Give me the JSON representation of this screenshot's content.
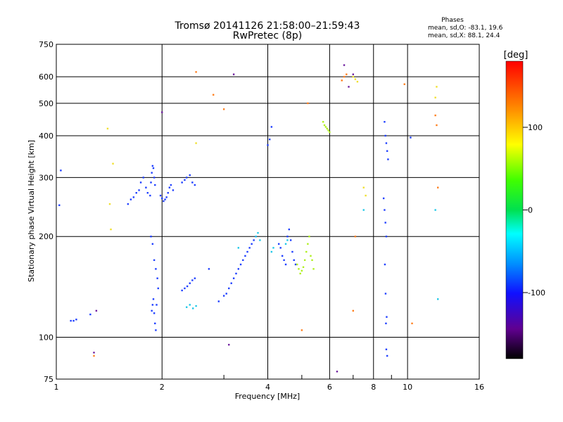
{
  "chart_data": {
    "type": "scatter",
    "title": "Tromsø 20141126 21:58:00–21:59:43",
    "subtitle": "RwPretec (8p)",
    "phases_panel": {
      "heading": "Phases",
      "line_o": "mean, sd,O: -83.1, 19.6",
      "line_x": "mean, sd,X:  88.1, 24.4"
    },
    "xlabel": "Frequency [MHz]",
    "ylabel": "Stationary phase Virtual Height [km]",
    "x_scale": "log",
    "y_scale": "log",
    "xlim": [
      1,
      16
    ],
    "ylim": [
      75,
      750
    ],
    "x_ticks": [
      1,
      2,
      4,
      6,
      8,
      10,
      16
    ],
    "x_tick_labels": [
      "1",
      "2",
      "4",
      "6",
      "8",
      "10",
      "16"
    ],
    "y_ticks": [
      75,
      100,
      200,
      300,
      400,
      500,
      600,
      750
    ],
    "y_tick_labels": [
      "75",
      "100",
      "200",
      "300",
      "400",
      "500",
      "600",
      "750"
    ],
    "grid": true,
    "colorbar": {
      "label": "[deg]",
      "range": [
        -180,
        180
      ],
      "ticks": [
        100,
        0,
        -100
      ],
      "tick_labels": [
        "100",
        "0",
        "-100"
      ]
    },
    "series": [
      {
        "points": [
          [
            1.1,
            112
          ],
          [
            1.12,
            112
          ],
          [
            1.14,
            113
          ],
          [
            1.25,
            117
          ],
          [
            1.02,
            248
          ],
          [
            1.03,
            315
          ],
          [
            1.6,
            250
          ],
          [
            1.63,
            258
          ],
          [
            1.66,
            262
          ],
          [
            1.69,
            270
          ],
          [
            1.72,
            275
          ],
          [
            1.74,
            290
          ],
          [
            1.77,
            300
          ],
          [
            1.8,
            280
          ],
          [
            1.82,
            270
          ],
          [
            1.85,
            265
          ],
          [
            1.86,
            290
          ],
          [
            1.87,
            310
          ],
          [
            1.88,
            325
          ],
          [
            1.89,
            320
          ],
          [
            1.9,
            300
          ],
          [
            1.91,
            285
          ],
          [
            1.87,
            120
          ],
          [
            1.88,
            125
          ],
          [
            1.89,
            130
          ],
          [
            1.9,
            118
          ],
          [
            1.91,
            110
          ],
          [
            1.92,
            105
          ],
          [
            1.93,
            125
          ],
          [
            1.95,
            140
          ],
          [
            1.86,
            200
          ],
          [
            1.88,
            190
          ],
          [
            1.9,
            170
          ],
          [
            1.92,
            160
          ],
          [
            1.94,
            150
          ],
          [
            1.98,
            265
          ],
          [
            2.0,
            260
          ],
          [
            2.02,
            255
          ],
          [
            2.04,
            258
          ],
          [
            2.06,
            262
          ],
          [
            2.08,
            270
          ],
          [
            2.1,
            280
          ],
          [
            2.12,
            285
          ],
          [
            2.15,
            275
          ],
          [
            2.28,
            290
          ],
          [
            2.32,
            295
          ],
          [
            2.35,
            300
          ],
          [
            2.4,
            305
          ],
          [
            2.44,
            290
          ],
          [
            2.48,
            285
          ],
          [
            2.28,
            138
          ],
          [
            2.32,
            140
          ],
          [
            2.36,
            142
          ],
          [
            2.4,
            145
          ],
          [
            2.44,
            148
          ],
          [
            2.48,
            150
          ],
          [
            2.72,
            160
          ],
          [
            2.9,
            128
          ],
          [
            3.0,
            133
          ],
          [
            3.05,
            135
          ],
          [
            3.1,
            140
          ],
          [
            3.15,
            145
          ],
          [
            3.2,
            150
          ],
          [
            3.25,
            155
          ],
          [
            3.3,
            160
          ],
          [
            3.35,
            165
          ],
          [
            3.4,
            170
          ],
          [
            3.45,
            175
          ],
          [
            3.5,
            180
          ],
          [
            3.55,
            185
          ],
          [
            3.6,
            190
          ],
          [
            3.65,
            195
          ],
          [
            3.7,
            200
          ],
          [
            4.1,
            425
          ],
          [
            4.05,
            390
          ],
          [
            4.0,
            375
          ],
          [
            4.3,
            190
          ],
          [
            4.35,
            185
          ],
          [
            4.4,
            175
          ],
          [
            4.45,
            170
          ],
          [
            4.5,
            165
          ],
          [
            4.55,
            200
          ],
          [
            4.6,
            210
          ],
          [
            4.65,
            195
          ],
          [
            4.7,
            180
          ],
          [
            4.75,
            170
          ],
          [
            4.8,
            165
          ],
          [
            8.55,
            260
          ],
          [
            8.6,
            240
          ],
          [
            8.65,
            220
          ],
          [
            8.7,
            200
          ],
          [
            8.62,
            165
          ],
          [
            8.66,
            135
          ],
          [
            8.72,
            115
          ],
          [
            8.68,
            110
          ],
          [
            8.7,
            92
          ],
          [
            8.75,
            88
          ],
          [
            8.6,
            440
          ],
          [
            8.65,
            400
          ],
          [
            8.7,
            380
          ],
          [
            8.75,
            360
          ],
          [
            8.8,
            340
          ],
          [
            10.2,
            395
          ]
        ],
        "color": "#2040ff"
      },
      {
        "points": [
          [
            2.35,
            123
          ],
          [
            2.4,
            125
          ],
          [
            2.45,
            122
          ],
          [
            2.5,
            124
          ],
          [
            3.3,
            185
          ],
          [
            3.7,
            200
          ],
          [
            3.75,
            205
          ],
          [
            3.8,
            195
          ],
          [
            4.1,
            180
          ],
          [
            4.15,
            185
          ],
          [
            4.5,
            190
          ],
          [
            4.55,
            195
          ],
          [
            7.5,
            240
          ],
          [
            12.0,
            240
          ],
          [
            12.2,
            130
          ]
        ],
        "color": "#20c8e8"
      },
      {
        "points": [
          [
            4.85,
            165
          ],
          [
            4.9,
            160
          ],
          [
            4.95,
            155
          ],
          [
            5.0,
            158
          ],
          [
            5.05,
            162
          ],
          [
            5.1,
            170
          ],
          [
            5.15,
            180
          ],
          [
            5.2,
            190
          ],
          [
            5.25,
            200
          ],
          [
            5.3,
            175
          ],
          [
            5.35,
            170
          ],
          [
            5.4,
            160
          ],
          [
            5.75,
            440
          ],
          [
            5.8,
            430
          ],
          [
            5.85,
            425
          ],
          [
            5.9,
            420
          ],
          [
            5.95,
            415
          ],
          [
            6.0,
            410
          ]
        ],
        "color": "#b0f020"
      },
      {
        "points": [
          [
            1.4,
            420
          ],
          [
            1.45,
            330
          ],
          [
            1.42,
            250
          ],
          [
            1.43,
            210
          ],
          [
            2.5,
            380
          ],
          [
            7.0,
            600
          ],
          [
            7.1,
            590
          ],
          [
            7.2,
            580
          ],
          [
            7.5,
            280
          ],
          [
            7.6,
            265
          ],
          [
            12.0,
            520
          ],
          [
            12.1,
            560
          ]
        ],
        "color": "#f0e030"
      },
      {
        "points": [
          [
            2.5,
            620
          ],
          [
            2.8,
            530
          ],
          [
            3.0,
            480
          ],
          [
            5.2,
            500
          ],
          [
            6.5,
            585
          ],
          [
            6.6,
            600
          ],
          [
            6.7,
            610
          ],
          [
            7.0,
            120
          ],
          [
            7.1,
            200
          ],
          [
            9.8,
            570
          ],
          [
            10.3,
            110
          ],
          [
            12.0,
            460
          ],
          [
            12.1,
            430
          ],
          [
            12.2,
            280
          ],
          [
            1.28,
            88
          ],
          [
            5.0,
            105
          ]
        ],
        "color": "#ff8020"
      },
      {
        "points": [
          [
            1.28,
            90
          ],
          [
            1.3,
            120
          ],
          [
            2.0,
            470
          ],
          [
            3.1,
            95
          ],
          [
            3.2,
            610
          ],
          [
            6.3,
            79
          ],
          [
            6.6,
            650
          ],
          [
            6.8,
            560
          ],
          [
            7.0,
            610
          ]
        ],
        "color": "#7020a0"
      }
    ]
  }
}
